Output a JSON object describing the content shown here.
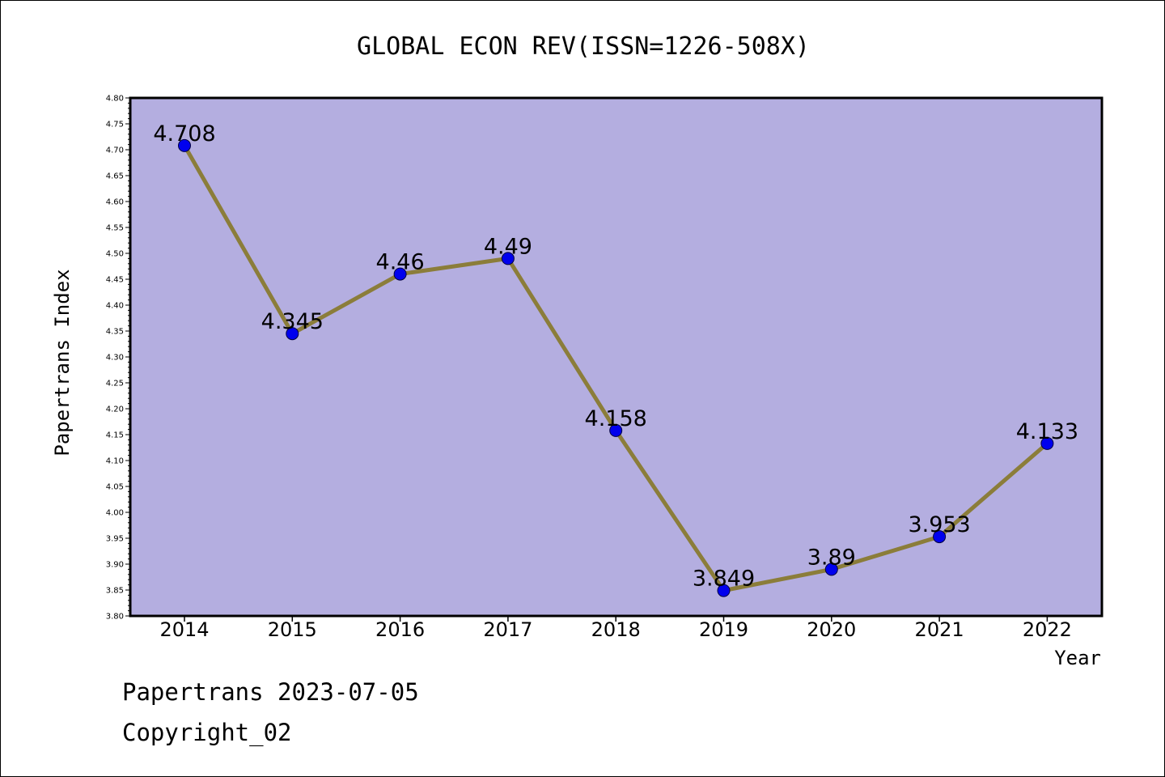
{
  "chart_data": {
    "type": "line",
    "title": "GLOBAL ECON REV(ISSN=1226-508X)",
    "xlabel": "Year",
    "ylabel": "Papertrans Index",
    "categories": [
      "2014",
      "2015",
      "2016",
      "2017",
      "2018",
      "2019",
      "2020",
      "2021",
      "2022"
    ],
    "values": [
      4.708,
      4.345,
      4.46,
      4.49,
      4.158,
      3.849,
      3.89,
      3.953,
      4.133
    ],
    "data_labels": [
      "4.708",
      "4.345",
      "4.46",
      "4.49",
      "4.158",
      "3.849",
      "3.89",
      "3.953",
      "4.133"
    ],
    "ylim": [
      3.8,
      4.8
    ],
    "yticks": [
      "3.80",
      "3.85",
      "3.90",
      "3.95",
      "4.00",
      "4.05",
      "4.10",
      "4.15",
      "4.20",
      "4.25",
      "4.30",
      "4.35",
      "4.40",
      "4.45",
      "4.50",
      "4.55",
      "4.60",
      "4.65",
      "4.70",
      "4.75",
      "4.80"
    ],
    "grid": false,
    "colors": {
      "plot_background": "#b4aee0",
      "line": "#8b7d3a",
      "marker": "#0000ee"
    }
  },
  "footer": {
    "line1": "Papertrans 2023-07-05",
    "line2": "Copyright_02"
  }
}
